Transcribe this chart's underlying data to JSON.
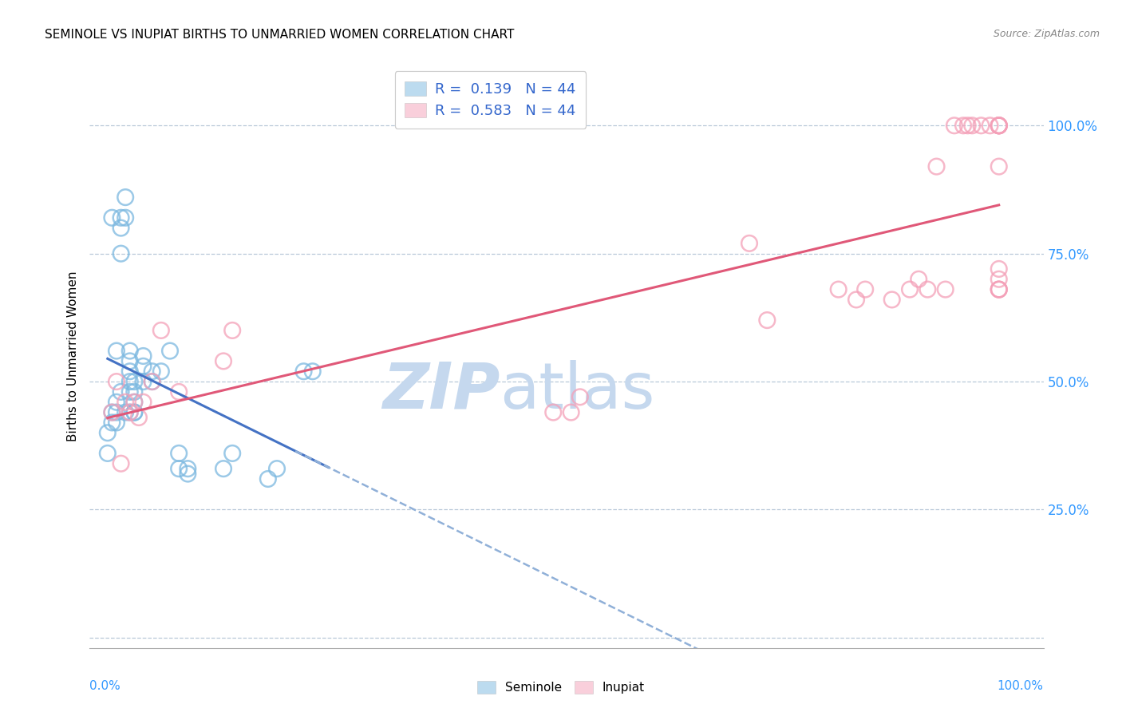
{
  "title": "SEMINOLE VS INUPIAT BIRTHS TO UNMARRIED WOMEN CORRELATION CHART",
  "source": "Source: ZipAtlas.com",
  "ylabel": "Births to Unmarried Women",
  "xlim": [
    -0.02,
    1.05
  ],
  "ylim": [
    -0.02,
    1.12
  ],
  "yticks": [
    0.0,
    0.25,
    0.5,
    0.75,
    1.0
  ],
  "ytick_labels": [
    "",
    "25.0%",
    "50.0%",
    "75.0%",
    "100.0%"
  ],
  "xtick_labels": [
    "0.0%",
    "",
    "",
    "",
    "",
    "",
    "",
    "",
    "",
    "",
    "100.0%"
  ],
  "xticks": [
    0.0,
    0.1,
    0.2,
    0.3,
    0.4,
    0.5,
    0.6,
    0.7,
    0.8,
    0.9,
    1.0
  ],
  "legend_label_s": "R =  0.139   N = 44",
  "legend_label_i": "R =  0.583   N = 44",
  "seminole_color": "#7bb8e0",
  "inupiat_color": "#f4a0b8",
  "trend_seminole_color": "#4472c4",
  "trend_inupiat_color": "#e05878",
  "watermark_zip_color": "#c8d8f0",
  "watermark_atlas_color": "#b8cce8",
  "seminole_x": [
    0.005,
    0.01,
    0.015,
    0.015,
    0.015,
    0.02,
    0.02,
    0.025,
    0.025,
    0.025,
    0.025,
    0.025,
    0.03,
    0.03,
    0.03,
    0.03,
    0.04,
    0.04,
    0.04,
    0.05,
    0.05,
    0.06,
    0.07,
    0.08,
    0.08,
    0.09,
    0.09,
    0.13,
    0.14,
    0.18,
    0.19,
    0.22,
    0.23,
    0.0,
    0.0,
    0.005,
    0.005,
    0.01,
    0.01,
    0.01,
    0.015,
    0.02,
    0.025,
    0.03
  ],
  "seminole_y": [
    0.82,
    0.56,
    0.75,
    0.8,
    0.82,
    0.82,
    0.86,
    0.48,
    0.5,
    0.52,
    0.54,
    0.56,
    0.44,
    0.46,
    0.48,
    0.5,
    0.5,
    0.53,
    0.55,
    0.5,
    0.52,
    0.52,
    0.56,
    0.33,
    0.36,
    0.32,
    0.33,
    0.33,
    0.36,
    0.31,
    0.33,
    0.52,
    0.52,
    0.36,
    0.4,
    0.42,
    0.44,
    0.42,
    0.44,
    0.46,
    0.48,
    0.44,
    0.44,
    0.44
  ],
  "inupiat_x": [
    0.005,
    0.01,
    0.015,
    0.02,
    0.025,
    0.03,
    0.035,
    0.04,
    0.05,
    0.06,
    0.08,
    0.13,
    0.14,
    0.5,
    0.52,
    0.53,
    0.72,
    0.74,
    0.82,
    0.84,
    0.85,
    0.88,
    0.9,
    0.91,
    0.92,
    0.93,
    0.94,
    0.95,
    0.96,
    0.965,
    0.97,
    0.98,
    0.99,
    1.0,
    1.0,
    1.0,
    1.0,
    1.0,
    1.0,
    1.0,
    1.0,
    1.0,
    1.0,
    1.0
  ],
  "inupiat_y": [
    0.44,
    0.5,
    0.34,
    0.46,
    0.44,
    0.46,
    0.43,
    0.46,
    0.5,
    0.6,
    0.48,
    0.54,
    0.6,
    0.44,
    0.44,
    0.47,
    0.77,
    0.62,
    0.68,
    0.66,
    0.68,
    0.66,
    0.68,
    0.7,
    0.68,
    0.92,
    0.68,
    1.0,
    1.0,
    1.0,
    1.0,
    1.0,
    1.0,
    0.68,
    0.68,
    0.68,
    0.7,
    0.72,
    0.92,
    1.0,
    1.0,
    1.0,
    1.0,
    1.0
  ]
}
